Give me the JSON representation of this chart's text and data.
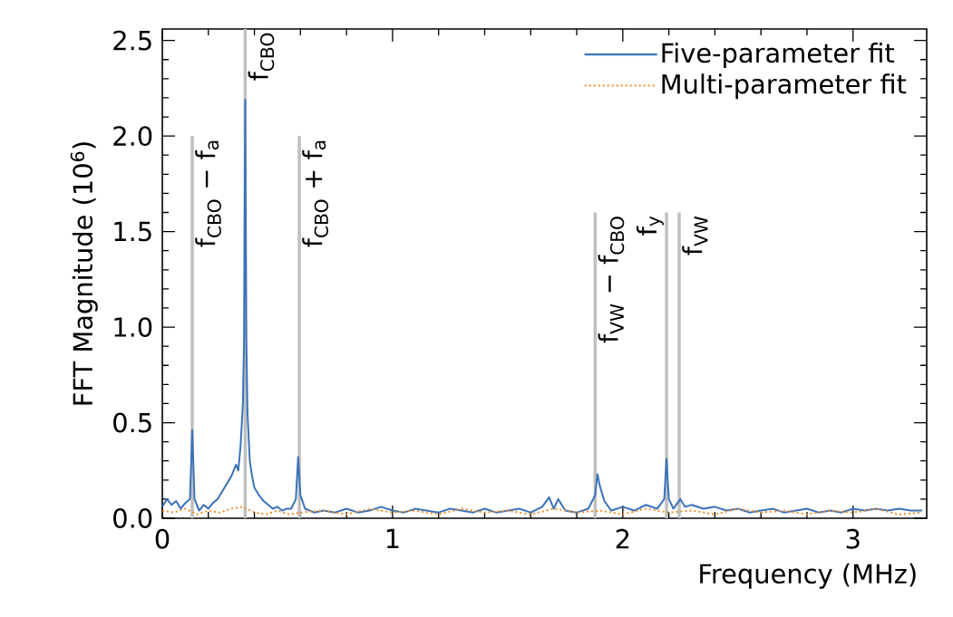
{
  "chart_data": {
    "type": "line",
    "xlabel": "Frequency (MHz)",
    "ylabel": "FFT Magnitude (10$^{6}$)",
    "xlim": [
      0,
      3.32
    ],
    "ylim": [
      0,
      2.56
    ],
    "xticks": [
      0,
      1,
      2,
      3
    ],
    "yticks": [
      {
        "value": 0,
        "label": "0.0"
      },
      0.5,
      {
        "value": 1,
        "label": "1.0"
      },
      1.5,
      {
        "value": 2,
        "label": "2.0"
      },
      2.5
    ],
    "legend": "top right",
    "marker": "none",
    "grid": false,
    "series": [
      {
        "color": "#bfbfbf",
        "line_style": "solid",
        "x": [
          0.13,
          0.13
        ],
        "values": [
          0,
          2.0
        ]
      },
      {
        "color": "#bfbfbf",
        "line_style": "solid",
        "x": [
          0.36,
          0.36
        ],
        "values": [
          0,
          2.56
        ]
      },
      {
        "color": "#bfbfbf",
        "line_style": "solid",
        "x": [
          0.595,
          0.595
        ],
        "values": [
          0,
          2.0
        ]
      },
      {
        "color": "#bfbfbf",
        "line_style": "solid",
        "x": [
          1.88,
          1.88
        ],
        "values": [
          0,
          1.6
        ]
      },
      {
        "color": "#bfbfbf",
        "line_style": "solid",
        "x": [
          2.19,
          2.19
        ],
        "values": [
          0,
          1.6
        ]
      },
      {
        "color": "#bfbfbf",
        "line_style": "solid",
        "x": [
          2.245,
          2.245
        ],
        "values": [
          0,
          1.6
        ]
      },
      {
        "name": "Five-parameter fit",
        "color": "#3b73b9",
        "line_style": "solid",
        "x": [
          0.0,
          0.02,
          0.04,
          0.06,
          0.08,
          0.1,
          0.12,
          0.13,
          0.14,
          0.16,
          0.18,
          0.2,
          0.22,
          0.24,
          0.26,
          0.28,
          0.3,
          0.32,
          0.33,
          0.34,
          0.35,
          0.355,
          0.36,
          0.365,
          0.37,
          0.38,
          0.39,
          0.4,
          0.42,
          0.44,
          0.46,
          0.48,
          0.5,
          0.52,
          0.54,
          0.56,
          0.58,
          0.59,
          0.6,
          0.62,
          0.64,
          0.66,
          0.7,
          0.75,
          0.8,
          0.85,
          0.9,
          0.95,
          1.0,
          1.05,
          1.1,
          1.15,
          1.2,
          1.25,
          1.3,
          1.35,
          1.4,
          1.45,
          1.5,
          1.55,
          1.6,
          1.65,
          1.68,
          1.7,
          1.72,
          1.75,
          1.8,
          1.85,
          1.88,
          1.89,
          1.9,
          1.92,
          1.95,
          2.0,
          2.05,
          2.1,
          2.15,
          2.18,
          2.19,
          2.2,
          2.22,
          2.25,
          2.27,
          2.3,
          2.35,
          2.4,
          2.45,
          2.5,
          2.55,
          2.6,
          2.65,
          2.7,
          2.75,
          2.8,
          2.85,
          2.9,
          2.95,
          3.0,
          3.05,
          3.1,
          3.15,
          3.2,
          3.25,
          3.3
        ],
        "values": [
          0.06,
          0.1,
          0.07,
          0.09,
          0.05,
          0.08,
          0.1,
          0.46,
          0.1,
          0.04,
          0.07,
          0.05,
          0.08,
          0.1,
          0.14,
          0.18,
          0.22,
          0.28,
          0.25,
          0.38,
          0.6,
          0.93,
          2.19,
          0.93,
          0.55,
          0.3,
          0.22,
          0.16,
          0.12,
          0.09,
          0.07,
          0.05,
          0.06,
          0.04,
          0.05,
          0.05,
          0.1,
          0.32,
          0.12,
          0.05,
          0.04,
          0.03,
          0.04,
          0.03,
          0.05,
          0.03,
          0.04,
          0.06,
          0.04,
          0.03,
          0.05,
          0.04,
          0.03,
          0.05,
          0.04,
          0.03,
          0.05,
          0.03,
          0.04,
          0.05,
          0.03,
          0.06,
          0.11,
          0.05,
          0.1,
          0.04,
          0.03,
          0.05,
          0.12,
          0.23,
          0.17,
          0.09,
          0.04,
          0.06,
          0.04,
          0.07,
          0.05,
          0.1,
          0.31,
          0.1,
          0.05,
          0.1,
          0.06,
          0.07,
          0.05,
          0.06,
          0.04,
          0.05,
          0.03,
          0.04,
          0.05,
          0.03,
          0.04,
          0.05,
          0.03,
          0.04,
          0.03,
          0.05,
          0.04,
          0.05,
          0.04,
          0.05,
          0.04,
          0.04
        ]
      },
      {
        "name": "Multi-parameter fit",
        "color": "#f28e2b",
        "line_style": "dotted",
        "x": [
          0.0,
          0.05,
          0.1,
          0.15,
          0.2,
          0.25,
          0.3,
          0.35,
          0.4,
          0.45,
          0.5,
          0.55,
          0.6,
          0.7,
          0.8,
          0.9,
          1.0,
          1.1,
          1.2,
          1.3,
          1.4,
          1.5,
          1.6,
          1.7,
          1.8,
          1.9,
          2.0,
          2.1,
          2.2,
          2.3,
          2.4,
          2.5,
          2.6,
          2.7,
          2.8,
          2.9,
          3.0,
          3.1,
          3.2,
          3.3
        ],
        "values": [
          0.04,
          0.03,
          0.05,
          0.02,
          0.04,
          0.03,
          0.05,
          0.06,
          0.03,
          0.02,
          0.04,
          0.02,
          0.03,
          0.04,
          0.02,
          0.05,
          0.03,
          0.04,
          0.02,
          0.05,
          0.03,
          0.04,
          0.02,
          0.05,
          0.03,
          0.04,
          0.02,
          0.05,
          0.03,
          0.04,
          0.02,
          0.05,
          0.03,
          0.04,
          0.02,
          0.04,
          0.03,
          0.05,
          0.02,
          0.03
        ]
      }
    ],
    "annotations": [
      {
        "text": "f$_{CBO}$ − f$_{a}$",
        "x": 0.13,
        "y": 2.0
      },
      {
        "text": "f$_{CBO}$",
        "x": 0.36,
        "y": 2.56
      },
      {
        "text": "f$_{CBO}$ + f$_{a}$",
        "x": 0.595,
        "y": 2.0
      },
      {
        "text": "f$_{VW}$ − f$_{CBO}$",
        "x": 1.88,
        "y": 1.6
      },
      {
        "text": "f$_{y}$",
        "x": 2.19,
        "y": 1.6
      },
      {
        "text": "f$_{VW}$",
        "x": 2.245,
        "y": 1.6
      }
    ]
  }
}
